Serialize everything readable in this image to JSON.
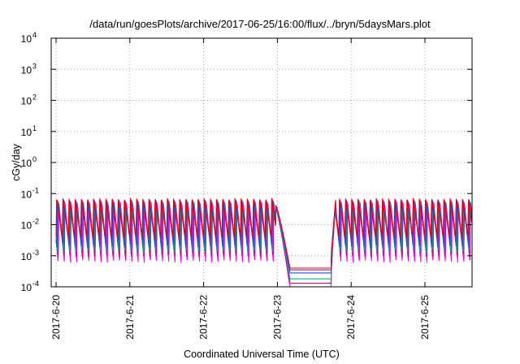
{
  "chart_data": {
    "type": "line",
    "title": "/data/run/goesPlots/archive/2017-06-25/16:00/flux/../bryn/5daysMars.plot",
    "xlabel": "Coordinated Universal Time (UTC)",
    "ylabel": "cGy/day",
    "yscale": "log",
    "ylim": [
      0.0001,
      10000
    ],
    "xlim_days": [
      0,
      5.68
    ],
    "grid": true,
    "yticks": [
      {
        "base": "10",
        "exp": "4"
      },
      {
        "base": "10",
        "exp": "3"
      },
      {
        "base": "10",
        "exp": "2"
      },
      {
        "base": "10",
        "exp": "1"
      },
      {
        "base": "10",
        "exp": "0"
      },
      {
        "base": "10",
        "exp": "-1"
      },
      {
        "base": "10",
        "exp": "-2"
      },
      {
        "base": "10",
        "exp": "-3"
      },
      {
        "base": "10",
        "exp": "-4"
      }
    ],
    "xticks": [
      "2017-6-20",
      "2017-6-21",
      "2017-6-22",
      "2017-6-23",
      "2017-6-24",
      "2017-6-25"
    ],
    "colors": [
      "#e8000b",
      "#7a2db4",
      "#1f4fe0",
      "#00b38a",
      "#b0137a",
      "#ff00ff"
    ],
    "pattern": {
      "sawtooth_period_days": 0.0833,
      "peak_value": 0.07,
      "trough_value_range": [
        0.0006,
        0.004
      ],
      "quiet_interval_days": [
        3.1,
        3.75
      ],
      "quiet_levels": [
        0.0004,
        0.00035,
        0.00028,
        0.00018,
        0.00013,
        0.0001
      ]
    }
  }
}
